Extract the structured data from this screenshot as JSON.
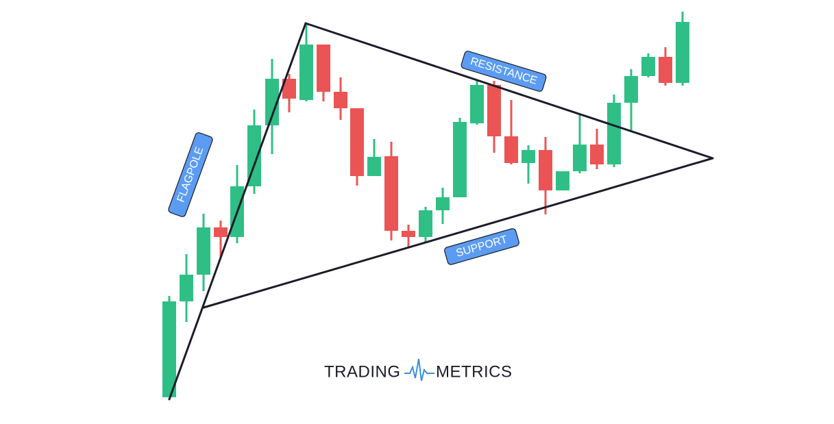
{
  "labels": {
    "flagpole": "FLAGPOLE",
    "resistance": "RESISTANCE",
    "support": "SUPPORT"
  },
  "logo": {
    "left": "TRADING",
    "right": "METRICS"
  }
}
